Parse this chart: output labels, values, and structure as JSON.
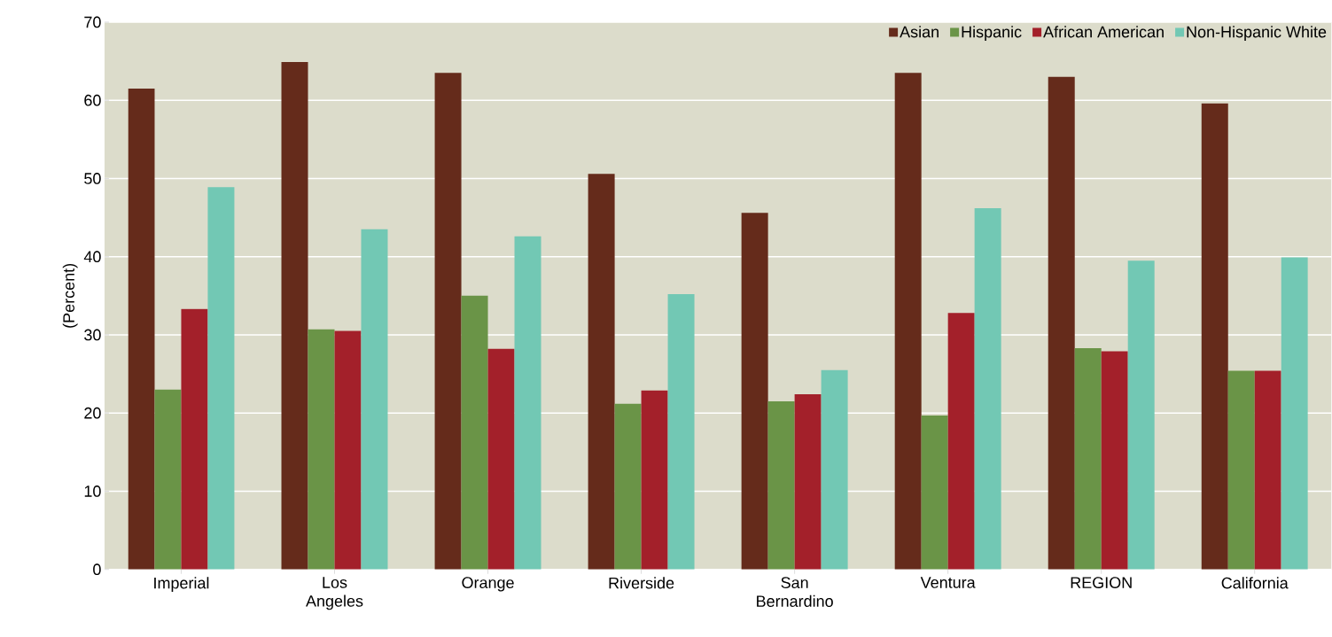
{
  "chart_data": {
    "type": "bar",
    "ylabel": "(Percent)",
    "categories": [
      "Imperial",
      "Los Angeles",
      "Orange",
      "Riverside",
      "San Bernardino",
      "Ventura",
      "REGION",
      "California"
    ],
    "series": [
      {
        "name": "Asian",
        "color": "#652b1b",
        "values": [
          61.5,
          64.9,
          63.5,
          50.6,
          45.6,
          63.5,
          63.0,
          59.6
        ]
      },
      {
        "name": "Hispanic",
        "color": "#6a9447",
        "values": [
          23.0,
          30.7,
          35.0,
          21.2,
          21.5,
          19.7,
          28.3,
          25.4
        ]
      },
      {
        "name": "African American",
        "color": "#a3202a",
        "values": [
          33.3,
          30.5,
          28.2,
          22.9,
          22.4,
          32.8,
          27.9,
          25.4
        ]
      },
      {
        "name": "Non-Hispanic White",
        "color": "#72c8b4",
        "values": [
          48.9,
          43.5,
          42.6,
          35.2,
          25.5,
          46.2,
          39.5,
          39.9
        ]
      }
    ],
    "ylim": [
      0,
      70
    ],
    "yticks": [
      0,
      10,
      20,
      30,
      40,
      50,
      60,
      70
    ],
    "grid": "y",
    "legend": "top right"
  }
}
